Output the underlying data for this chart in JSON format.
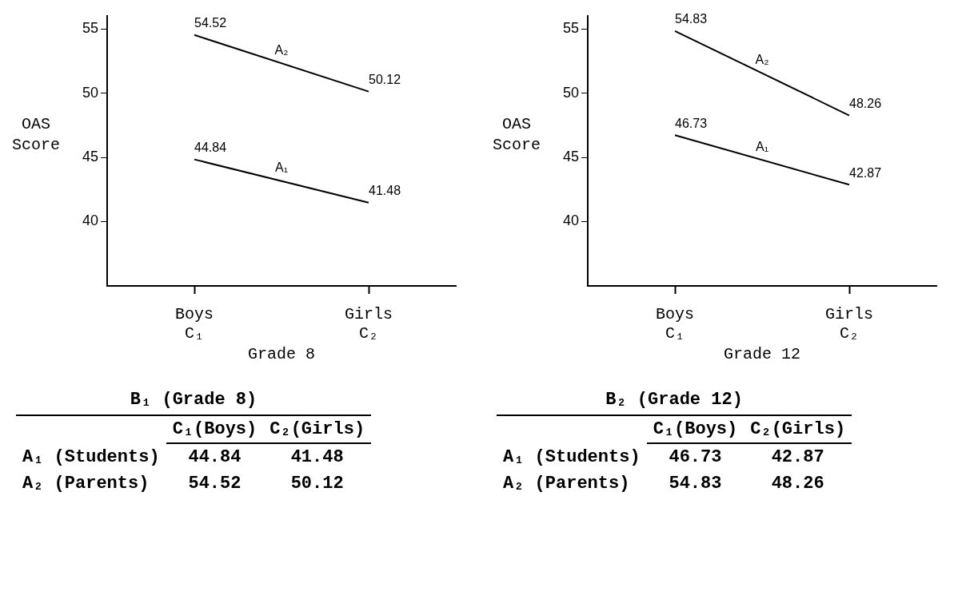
{
  "chart_data": [
    {
      "type": "line",
      "xlabel": "Grade 8",
      "ylabel": "OAS\nScore",
      "categories": [
        "Boys\nC₁",
        "Girls\nC₂"
      ],
      "series": [
        {
          "name": "A₁",
          "color": "#000000",
          "values": [
            44.84,
            41.48
          ],
          "value_labels": [
            "44.84",
            "41.48"
          ]
        },
        {
          "name": "A₂",
          "color": "#000000",
          "values": [
            54.52,
            50.12
          ],
          "value_labels": [
            "54.52",
            "50.12"
          ]
        }
      ],
      "ylim": [
        35,
        56
      ],
      "yticks": [
        40,
        45,
        50,
        55
      ],
      "grid": false,
      "legend": false,
      "marker": "none",
      "annotations": [
        "B₁ (Grade 8)",
        "C₁(Boys)",
        "C₂(Girls)",
        "A₁ (Students)",
        "A₂ (Parents)",
        "44.84",
        "41.48",
        "54.52",
        "50.12"
      ]
    },
    {
      "type": "line",
      "xlabel": "Grade 12",
      "ylabel": "OAS\nScore",
      "categories": [
        "Boys\nC₁",
        "Girls\nC₂"
      ],
      "series": [
        {
          "name": "A₁",
          "color": "#000000",
          "values": [
            46.73,
            42.87
          ],
          "value_labels": [
            "46.73",
            "42.87"
          ]
        },
        {
          "name": "A₂",
          "color": "#000000",
          "values": [
            54.83,
            48.26
          ],
          "value_labels": [
            "54.83",
            "48.26"
          ]
        }
      ],
      "ylim": [
        35,
        56
      ],
      "yticks": [
        40,
        45,
        50,
        55
      ],
      "grid": false,
      "legend": false,
      "marker": "none",
      "annotations": [
        "B₂ (Grade 12)",
        "C₁(Boys)",
        "C₂(Girls)",
        "A₁ (Students)",
        "A₂ (Parents)",
        "46.73",
        "42.87",
        "54.83",
        "48.26"
      ]
    }
  ]
}
